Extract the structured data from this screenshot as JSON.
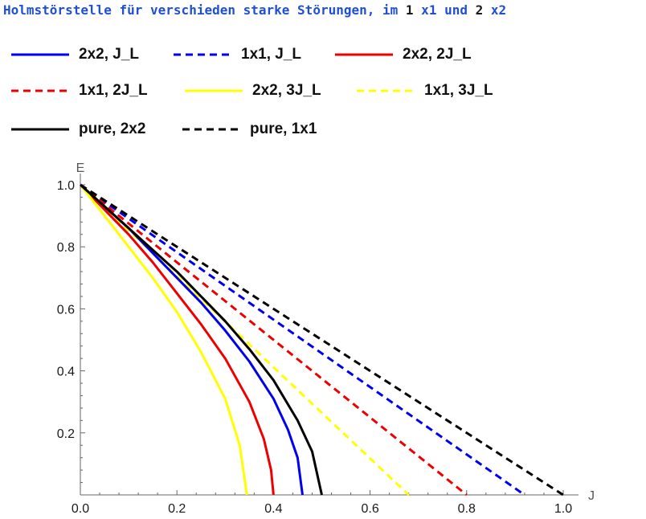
{
  "header": {
    "title_main": "Holmstörstelle für verschieden starke Störungen,",
    "title_im": " im ",
    "title_n1": "1",
    "title_x1": " x1 und ",
    "title_n2": "2",
    "title_x2": " x2"
  },
  "chart_data": {
    "type": "line",
    "title": "Holmstörstelle für verschieden starke Störungen, im 1 x1 und 2 x2",
    "xlabel": "J",
    "ylabel": "E",
    "xlim": [
      0,
      1.0
    ],
    "ylim": [
      0,
      1.0
    ],
    "xticks": [
      0.0,
      0.2,
      0.4,
      0.6,
      0.8,
      1.0
    ],
    "xtick_labels": [
      "0.0",
      "0.2",
      "0.4",
      "0.6",
      "0.8",
      "1.0"
    ],
    "yticks": [
      0.2,
      0.4,
      0.6,
      0.8,
      1.0
    ],
    "ytick_labels": [
      "0.2",
      "0.4",
      "0.6",
      "0.8",
      "1.0"
    ],
    "grid": false,
    "legend_position": "top",
    "series": [
      {
        "name": "2x2, J_L",
        "color": "#0000ee",
        "dash": "solid",
        "x": [
          0,
          0.05,
          0.1,
          0.15,
          0.2,
          0.25,
          0.3,
          0.35,
          0.4,
          0.43,
          0.45,
          0.46
        ],
        "y": [
          1.0,
          0.93,
          0.86,
          0.78,
          0.7,
          0.62,
          0.53,
          0.43,
          0.31,
          0.21,
          0.12,
          0.0
        ]
      },
      {
        "name": "1x1, J_L",
        "color": "#0000ee",
        "dash": "dashed",
        "x": [
          0,
          0.92
        ],
        "y": [
          1.0,
          0.0
        ]
      },
      {
        "name": "2x2, 2J_L",
        "color": "#ee0000",
        "dash": "solid",
        "x": [
          0,
          0.05,
          0.1,
          0.15,
          0.2,
          0.25,
          0.3,
          0.35,
          0.38,
          0.395,
          0.4
        ],
        "y": [
          1.0,
          0.92,
          0.84,
          0.75,
          0.65,
          0.55,
          0.44,
          0.3,
          0.18,
          0.08,
          0.0
        ]
      },
      {
        "name": "1x1, 2J_L",
        "color": "#ee0000",
        "dash": "dashed",
        "x": [
          0,
          0.8
        ],
        "y": [
          1.0,
          0.0
        ]
      },
      {
        "name": "2x2, 3J_L",
        "color": "#ffff00",
        "dash": "solid",
        "x": [
          0,
          0.05,
          0.1,
          0.15,
          0.2,
          0.25,
          0.3,
          0.33,
          0.345
        ],
        "y": [
          1.0,
          0.9,
          0.8,
          0.7,
          0.59,
          0.46,
          0.31,
          0.16,
          0.0
        ]
      },
      {
        "name": "1x1, 3J_L",
        "color": "#ffff00",
        "dash": "dashed",
        "x": [
          0,
          0.68
        ],
        "y": [
          1.0,
          0.0
        ]
      },
      {
        "name": "pure, 2x2",
        "color": "#000000",
        "dash": "solid",
        "x": [
          0,
          0.05,
          0.1,
          0.15,
          0.2,
          0.25,
          0.3,
          0.35,
          0.4,
          0.45,
          0.48,
          0.5
        ],
        "y": [
          1.0,
          0.93,
          0.86,
          0.79,
          0.72,
          0.64,
          0.56,
          0.47,
          0.37,
          0.24,
          0.14,
          0.0
        ]
      },
      {
        "name": "pure, 1x1",
        "color": "#000000",
        "dash": "dashed",
        "x": [
          0,
          1.0
        ],
        "y": [
          1.0,
          0.0
        ]
      }
    ]
  }
}
